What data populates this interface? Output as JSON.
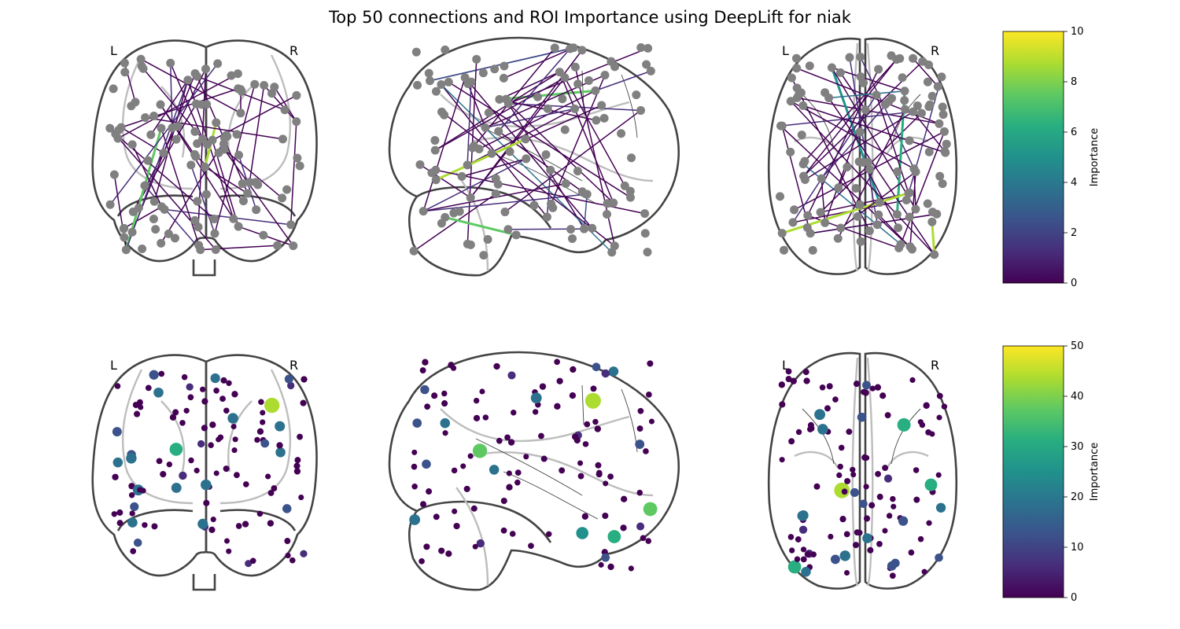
{
  "title": "Top 50 connections and ROI Importance using DeepLift for niak",
  "hemisphere_labels": {
    "left": "L",
    "right": "R"
  },
  "connectome_panel": {
    "colorbar": {
      "label": "Importance",
      "min": 0,
      "max": 10,
      "ticks": [
        "0",
        "2",
        "4",
        "6",
        "8",
        "10"
      ]
    },
    "node_color": "#808080",
    "num_connections": 50
  },
  "roi_panel": {
    "colorbar": {
      "label": "Importance",
      "min": 0,
      "max": 50,
      "ticks": [
        "0",
        "10",
        "20",
        "30",
        "40",
        "50"
      ]
    }
  },
  "colormap": "viridis"
}
